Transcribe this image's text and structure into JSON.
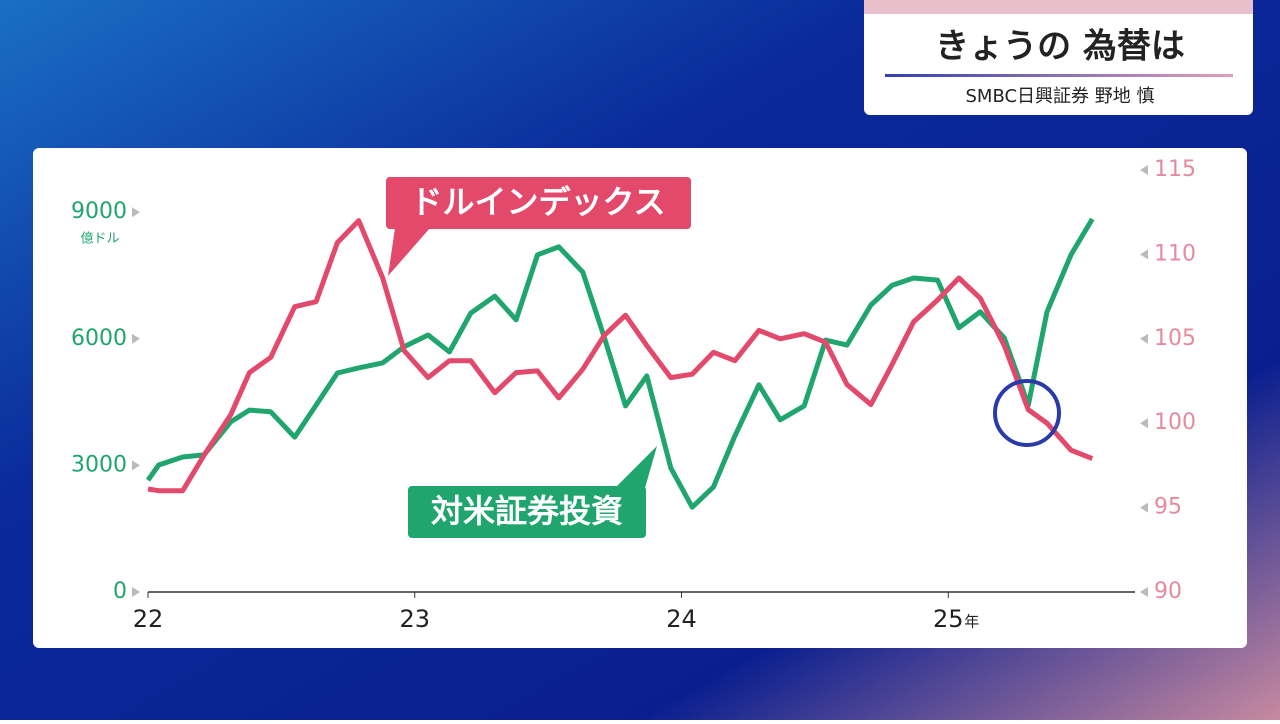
{
  "header": {
    "title": "きょうの 為替は",
    "speaker": "SMBC日興証券 野地 慎"
  },
  "chart_data": {
    "type": "line",
    "x": [
      22.0,
      22.04,
      22.13,
      22.21,
      22.31,
      22.38,
      22.46,
      22.55,
      22.63,
      22.71,
      22.79,
      22.88,
      22.96,
      23.05,
      23.13,
      23.21,
      23.3,
      23.38,
      23.46,
      23.54,
      23.63,
      23.71,
      23.79,
      23.87,
      23.96,
      24.04,
      24.12,
      24.2,
      24.29,
      24.37,
      24.46,
      24.54,
      24.62,
      24.71,
      24.79,
      24.87,
      24.96,
      25.04,
      25.12,
      25.21,
      25.3,
      25.37,
      25.46,
      25.54
    ],
    "xlim": [
      22,
      25.7
    ],
    "xticks": [
      22,
      23,
      24,
      25
    ],
    "x_unit": "年",
    "ylim": [
      0,
      10000
    ],
    "yticks": [
      0,
      3000,
      6000,
      9000
    ],
    "y_unit": "億ドル",
    "y2lim": [
      90,
      115
    ],
    "y2ticks": [
      90,
      95,
      100,
      105,
      110,
      115
    ],
    "series": [
      {
        "name": "ドルインデックス",
        "color": "#e2496b",
        "axis": "y2",
        "values": [
          96.1,
          96.0,
          96.0,
          98.1,
          100.5,
          103.0,
          103.9,
          106.9,
          107.2,
          110.7,
          112.0,
          108.6,
          104.3,
          102.7,
          103.7,
          103.7,
          101.8,
          103.0,
          103.1,
          101.5,
          103.2,
          105.2,
          106.4,
          104.6,
          102.7,
          102.9,
          104.2,
          103.7,
          105.5,
          105.0,
          105.3,
          104.8,
          102.3,
          101.1,
          103.5,
          106.0,
          107.3,
          108.6,
          107.4,
          104.6,
          100.8,
          100.0,
          98.4,
          97.9
        ]
      },
      {
        "name": "対米証券投資",
        "color": "#1fa56d",
        "values": [
          2650,
          3010,
          3200,
          3250,
          4030,
          4310,
          4270,
          3670,
          4430,
          5190,
          5310,
          5430,
          5810,
          6090,
          5690,
          6610,
          7010,
          6450,
          7990,
          8180,
          7580,
          6040,
          4410,
          5120,
          2940,
          2010,
          2490,
          3700,
          4910,
          4080,
          4410,
          5970,
          5850,
          6800,
          7270,
          7440,
          7390,
          6260,
          6640,
          6020,
          4430,
          6640,
          7990,
          8840
        ]
      }
    ]
  }
}
